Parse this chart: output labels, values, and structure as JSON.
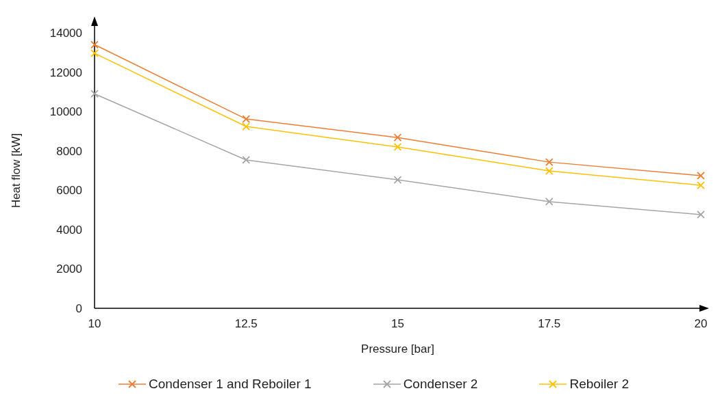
{
  "chart_data": {
    "type": "line",
    "xlabel": "Pressure [bar]",
    "ylabel": "Heat flow [kW]",
    "x": [
      10,
      12.5,
      15,
      17.5,
      20
    ],
    "series": [
      {
        "name": "Condenser 1 and Reboiler 1",
        "color": "#ed7d31",
        "values": [
          13400,
          9620,
          8680,
          7430,
          6740
        ]
      },
      {
        "name": "Condenser 2",
        "color": "#a5a5a5",
        "values": [
          10900,
          7540,
          6530,
          5420,
          4760
        ]
      },
      {
        "name": "Reboiler 2",
        "color": "#ffc000",
        "values": [
          12960,
          9240,
          8200,
          6980,
          6250
        ]
      }
    ],
    "xlim": [
      10,
      20
    ],
    "xticks": [
      10,
      12.5,
      15,
      17.5,
      20
    ],
    "ylim": [
      0,
      14000
    ],
    "yticks": [
      0,
      2000,
      4000,
      6000,
      8000,
      10000,
      12000,
      14000
    ],
    "grid": false,
    "legend": "bottom",
    "marker": "cross",
    "line_style": "solid"
  }
}
